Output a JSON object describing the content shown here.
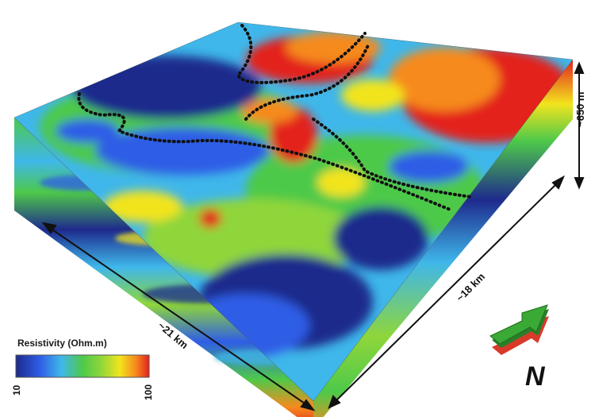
{
  "figure": {
    "dimensions": {
      "width_label": "~21 km",
      "depth_label": "~18 km",
      "height_label": "~650 m"
    },
    "legend": {
      "title": "Resistivity (Ohm.m)",
      "min": "10",
      "max": "100",
      "colormap": [
        "#1e2a8c",
        "#2f5de6",
        "#3fb7ea",
        "#4ec94a",
        "#8fd63a",
        "#f2e41d",
        "#f68a1e",
        "#e3211f"
      ]
    },
    "north_arrow": {
      "letter": "N",
      "colors": {
        "top": "#3aa935",
        "side": "#2a7f2a",
        "base": "#d93a2a"
      }
    },
    "colors": {
      "resistive": "#e3211f",
      "conductive": "#1e2a8c",
      "intermediate": "#4ec94a",
      "outline": "#111111"
    }
  }
}
